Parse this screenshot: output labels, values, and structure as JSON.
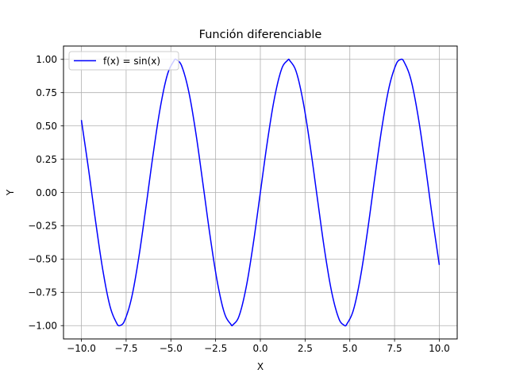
{
  "chart_data": {
    "type": "line",
    "title": "Función diferenciable",
    "xlabel": "X",
    "ylabel": "Y",
    "xlim": [
      -11.0,
      11.0
    ],
    "ylim": [
      -1.1,
      1.1
    ],
    "xticks": [
      -10.0,
      -7.5,
      -5.0,
      -2.5,
      0.0,
      2.5,
      5.0,
      7.5,
      10.0
    ],
    "xtick_labels": [
      "−10.0",
      "−7.5",
      "−5.0",
      "−2.5",
      "0.0",
      "2.5",
      "5.0",
      "7.5",
      "10.0"
    ],
    "yticks": [
      -1.0,
      -0.75,
      -0.5,
      -0.25,
      0.0,
      0.25,
      0.5,
      0.75,
      1.0
    ],
    "ytick_labels": [
      "−1.00",
      "−0.75",
      "−0.50",
      "−0.25",
      "0.00",
      "0.25",
      "0.50",
      "0.75",
      "1.00"
    ],
    "grid": true,
    "legend_position": "upper-left",
    "series": [
      {
        "name": "f(x) = sin(x)",
        "color": "#0000ff",
        "x": [
          -10.0,
          -9.6,
          -9.2,
          -8.8,
          -8.4,
          -8.0,
          -7.854,
          -7.6,
          -7.2,
          -6.8,
          -6.4,
          -6.0,
          -5.6,
          -5.2,
          -4.8,
          -4.712,
          -4.4,
          -4.0,
          -3.6,
          -3.2,
          -2.8,
          -2.4,
          -2.0,
          -1.6,
          -1.571,
          -1.2,
          -0.8,
          -0.4,
          0.0,
          0.4,
          0.8,
          1.2,
          1.571,
          1.6,
          2.0,
          2.4,
          2.8,
          3.2,
          3.6,
          4.0,
          4.4,
          4.712,
          4.8,
          5.2,
          5.6,
          6.0,
          6.4,
          6.8,
          7.2,
          7.6,
          7.854,
          8.0,
          8.4,
          8.8,
          9.2,
          9.6,
          10.0
        ],
        "y": [
          0.544,
          0.174,
          -0.223,
          -0.585,
          -0.855,
          -0.989,
          -1.0,
          -0.967,
          -0.794,
          -0.494,
          -0.117,
          0.279,
          0.631,
          0.883,
          0.996,
          1.0,
          0.952,
          0.757,
          0.443,
          0.058,
          -0.335,
          -0.675,
          -0.909,
          -0.9996,
          -1.0,
          -0.932,
          -0.717,
          -0.389,
          0.0,
          0.389,
          0.717,
          0.932,
          1.0,
          0.9996,
          0.909,
          0.675,
          0.335,
          -0.058,
          -0.443,
          -0.757,
          -0.952,
          -1.0,
          -0.996,
          -0.883,
          -0.631,
          -0.279,
          0.117,
          0.494,
          0.794,
          0.967,
          1.0,
          0.989,
          0.855,
          0.585,
          0.223,
          -0.174,
          -0.544
        ]
      }
    ]
  }
}
